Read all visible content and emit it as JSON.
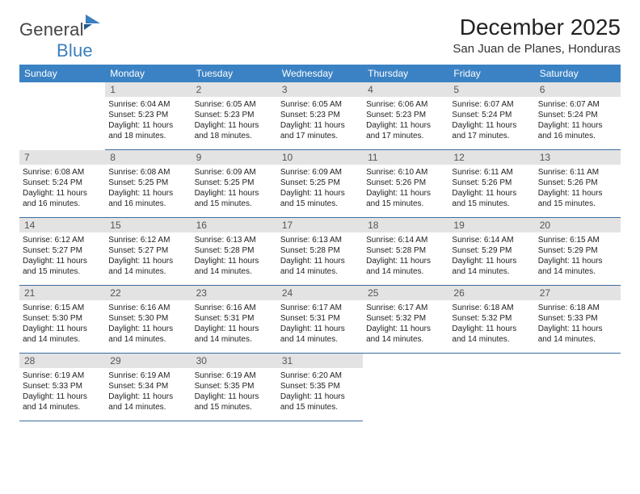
{
  "brand": {
    "part1": "General",
    "part2": "Blue"
  },
  "title": "December 2025",
  "location": "San Juan de Planes, Honduras",
  "colors": {
    "header_bg": "#3b82c4",
    "header_fg": "#ffffff",
    "daynum_bg": "#e3e3e3",
    "cell_border": "#3b6fa0",
    "logo_blue": "#3a7fc0"
  },
  "weekdays": [
    "Sunday",
    "Monday",
    "Tuesday",
    "Wednesday",
    "Thursday",
    "Friday",
    "Saturday"
  ],
  "weeks": [
    [
      null,
      {
        "n": "1",
        "sr": "6:04 AM",
        "ss": "5:23 PM",
        "dl": "11 hours and 18 minutes."
      },
      {
        "n": "2",
        "sr": "6:05 AM",
        "ss": "5:23 PM",
        "dl": "11 hours and 18 minutes."
      },
      {
        "n": "3",
        "sr": "6:05 AM",
        "ss": "5:23 PM",
        "dl": "11 hours and 17 minutes."
      },
      {
        "n": "4",
        "sr": "6:06 AM",
        "ss": "5:23 PM",
        "dl": "11 hours and 17 minutes."
      },
      {
        "n": "5",
        "sr": "6:07 AM",
        "ss": "5:24 PM",
        "dl": "11 hours and 17 minutes."
      },
      {
        "n": "6",
        "sr": "6:07 AM",
        "ss": "5:24 PM",
        "dl": "11 hours and 16 minutes."
      }
    ],
    [
      {
        "n": "7",
        "sr": "6:08 AM",
        "ss": "5:24 PM",
        "dl": "11 hours and 16 minutes."
      },
      {
        "n": "8",
        "sr": "6:08 AM",
        "ss": "5:25 PM",
        "dl": "11 hours and 16 minutes."
      },
      {
        "n": "9",
        "sr": "6:09 AM",
        "ss": "5:25 PM",
        "dl": "11 hours and 15 minutes."
      },
      {
        "n": "10",
        "sr": "6:09 AM",
        "ss": "5:25 PM",
        "dl": "11 hours and 15 minutes."
      },
      {
        "n": "11",
        "sr": "6:10 AM",
        "ss": "5:26 PM",
        "dl": "11 hours and 15 minutes."
      },
      {
        "n": "12",
        "sr": "6:11 AM",
        "ss": "5:26 PM",
        "dl": "11 hours and 15 minutes."
      },
      {
        "n": "13",
        "sr": "6:11 AM",
        "ss": "5:26 PM",
        "dl": "11 hours and 15 minutes."
      }
    ],
    [
      {
        "n": "14",
        "sr": "6:12 AM",
        "ss": "5:27 PM",
        "dl": "11 hours and 15 minutes."
      },
      {
        "n": "15",
        "sr": "6:12 AM",
        "ss": "5:27 PM",
        "dl": "11 hours and 14 minutes."
      },
      {
        "n": "16",
        "sr": "6:13 AM",
        "ss": "5:28 PM",
        "dl": "11 hours and 14 minutes."
      },
      {
        "n": "17",
        "sr": "6:13 AM",
        "ss": "5:28 PM",
        "dl": "11 hours and 14 minutes."
      },
      {
        "n": "18",
        "sr": "6:14 AM",
        "ss": "5:28 PM",
        "dl": "11 hours and 14 minutes."
      },
      {
        "n": "19",
        "sr": "6:14 AM",
        "ss": "5:29 PM",
        "dl": "11 hours and 14 minutes."
      },
      {
        "n": "20",
        "sr": "6:15 AM",
        "ss": "5:29 PM",
        "dl": "11 hours and 14 minutes."
      }
    ],
    [
      {
        "n": "21",
        "sr": "6:15 AM",
        "ss": "5:30 PM",
        "dl": "11 hours and 14 minutes."
      },
      {
        "n": "22",
        "sr": "6:16 AM",
        "ss": "5:30 PM",
        "dl": "11 hours and 14 minutes."
      },
      {
        "n": "23",
        "sr": "6:16 AM",
        "ss": "5:31 PM",
        "dl": "11 hours and 14 minutes."
      },
      {
        "n": "24",
        "sr": "6:17 AM",
        "ss": "5:31 PM",
        "dl": "11 hours and 14 minutes."
      },
      {
        "n": "25",
        "sr": "6:17 AM",
        "ss": "5:32 PM",
        "dl": "11 hours and 14 minutes."
      },
      {
        "n": "26",
        "sr": "6:18 AM",
        "ss": "5:32 PM",
        "dl": "11 hours and 14 minutes."
      },
      {
        "n": "27",
        "sr": "6:18 AM",
        "ss": "5:33 PM",
        "dl": "11 hours and 14 minutes."
      }
    ],
    [
      {
        "n": "28",
        "sr": "6:19 AM",
        "ss": "5:33 PM",
        "dl": "11 hours and 14 minutes."
      },
      {
        "n": "29",
        "sr": "6:19 AM",
        "ss": "5:34 PM",
        "dl": "11 hours and 14 minutes."
      },
      {
        "n": "30",
        "sr": "6:19 AM",
        "ss": "5:35 PM",
        "dl": "11 hours and 15 minutes."
      },
      {
        "n": "31",
        "sr": "6:20 AM",
        "ss": "5:35 PM",
        "dl": "11 hours and 15 minutes."
      },
      null,
      null,
      null
    ]
  ],
  "labels": {
    "sunrise": "Sunrise:",
    "sunset": "Sunset:",
    "daylight": "Daylight:"
  }
}
